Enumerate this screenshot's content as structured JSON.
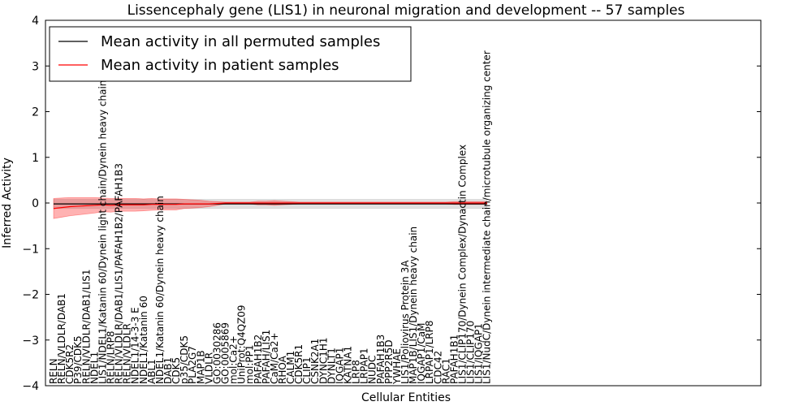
{
  "chart_data": {
    "type": "line",
    "title": "Lissencephaly gene (LIS1) in neuronal migration and development -- 57 samples",
    "xlabel": "Cellular Entities",
    "ylabel": "Inferred Activity",
    "ylim": [
      -4,
      4
    ],
    "yticks": [
      "4",
      "3",
      "2",
      "1",
      "0",
      "−1",
      "−2",
      "−3",
      "−4"
    ],
    "grid": false,
    "legend_position": "top-left",
    "categories": [
      "RELN",
      "RELN/VLDLR/DAB1",
      "CDK5R2",
      "P39/CDK5",
      "RELN/VLDLR/DAB1/LIS1",
      "NDEL1",
      "LIS1/NDEL1/Katanin 60/Dynein light chain/Dynein heavy chain",
      "RELN/LRP8",
      "RELN/VLDLR/DAB1/LIS1/PAFAH1B2/PAFAH1B3",
      "RELN/VLDLR",
      "NDEL1/14-3-3 E",
      "NDEL1/Katanin 60",
      "ABL1",
      "NDEL1/Katanin 60/Dynein heavy chain",
      "DAB1",
      "CDK5",
      "p35/CDK5",
      "PLA2G7",
      "MAP1B",
      "VLDLR",
      "GO:0030286",
      "GO:0005869",
      "mol:Ca2+",
      "UniProt:Q4QZ09",
      "mol:PP1",
      "PAFAH1B2",
      "PAFAH/LIS1",
      "CaM/Ca2+",
      "RHOA",
      "CALM1",
      "CDK5R1",
      "CLIP1",
      "CSNK2A1",
      "DYNC1H1",
      "DYNLT1",
      "IQGAP1",
      "KATNA1",
      "LRP8",
      "LRPAP1",
      "NUDC",
      "PAFAH1B3",
      "PPP2R5D",
      "YWHAE",
      "LIS1/Poliovirus Protein 3A",
      "MAP1B/LIS1/Dynein heavy chain",
      "IQGAP1/CaM",
      "LRPAP1/LRP8",
      "CDC42",
      "RAC1",
      "PAFAH1B1",
      "LIS1/CLIP170/Dynein Complex/Dynactin Complex",
      "LIS1/CLIP170",
      "LIS1/IQGAP1",
      "LIS1/NudC/Dynein intermediate chain/microtubule organizing center"
    ],
    "series": [
      {
        "name": "Mean activity in all permuted samples",
        "color": "#000000",
        "values": [
          -0.02,
          -0.02,
          -0.02,
          -0.02,
          -0.02,
          -0.02,
          -0.02,
          -0.02,
          -0.02,
          -0.02,
          -0.02,
          -0.02,
          -0.02,
          -0.02,
          -0.02,
          -0.02,
          -0.02,
          -0.02,
          -0.02,
          -0.02,
          -0.02,
          -0.02,
          -0.02,
          -0.02,
          -0.02,
          -0.02,
          -0.02,
          -0.02,
          -0.02,
          -0.02,
          -0.02,
          -0.02,
          -0.02,
          -0.02,
          -0.02,
          -0.02,
          -0.02,
          -0.02,
          -0.02,
          -0.02,
          -0.02,
          -0.02,
          -0.02,
          -0.02,
          -0.02,
          -0.02,
          -0.02,
          -0.02,
          -0.02,
          -0.02,
          -0.02,
          -0.02,
          -0.02,
          -0.02
        ],
        "band": [
          0.1,
          0.1,
          0.1,
          0.1,
          0.1,
          0.1,
          0.1,
          0.1,
          0.1,
          0.1,
          0.1,
          0.1,
          0.1,
          0.1,
          0.1,
          0.1,
          0.1,
          0.1,
          0.1,
          0.1,
          0.1,
          0.1,
          0.1,
          0.1,
          0.1,
          0.1,
          0.1,
          0.1,
          0.1,
          0.1,
          0.1,
          0.1,
          0.1,
          0.1,
          0.1,
          0.1,
          0.1,
          0.1,
          0.1,
          0.1,
          0.1,
          0.1,
          0.1,
          0.1,
          0.1,
          0.1,
          0.1,
          0.1,
          0.1,
          0.1,
          0.1,
          0.1,
          0.1,
          0.1
        ]
      },
      {
        "name": "Mean activity in patient samples",
        "color": "#ff0000",
        "values": [
          -0.12,
          -0.1,
          -0.08,
          -0.07,
          -0.06,
          -0.05,
          -0.04,
          -0.05,
          -0.04,
          -0.04,
          -0.04,
          -0.04,
          -0.03,
          -0.03,
          -0.03,
          -0.03,
          -0.02,
          -0.02,
          -0.02,
          -0.02,
          -0.01,
          0.0,
          0.0,
          0.0,
          0.0,
          0.0,
          0.0,
          0.0,
          0.0,
          0.0,
          0.0,
          0.0,
          0.0,
          0.0,
          0.0,
          0.0,
          0.0,
          0.0,
          0.0,
          0.0,
          0.0,
          0.0,
          0.0,
          0.0,
          0.0,
          0.0,
          0.0,
          0.0,
          0.0,
          0.0,
          0.0,
          0.0,
          0.0,
          0.0
        ],
        "band": [
          0.22,
          0.21,
          0.2,
          0.19,
          0.18,
          0.17,
          0.15,
          0.15,
          0.14,
          0.14,
          0.14,
          0.13,
          0.13,
          0.12,
          0.12,
          0.12,
          0.1,
          0.09,
          0.08,
          0.06,
          0.04,
          0.02,
          0.02,
          0.02,
          0.02,
          0.04,
          0.04,
          0.05,
          0.04,
          0.03,
          0.02,
          0.02,
          0.02,
          0.02,
          0.02,
          0.02,
          0.02,
          0.02,
          0.02,
          0.02,
          0.02,
          0.02,
          0.02,
          0.02,
          0.02,
          0.02,
          0.02,
          0.02,
          0.02,
          0.03,
          0.03,
          0.03,
          0.03,
          0.03
        ]
      }
    ]
  }
}
